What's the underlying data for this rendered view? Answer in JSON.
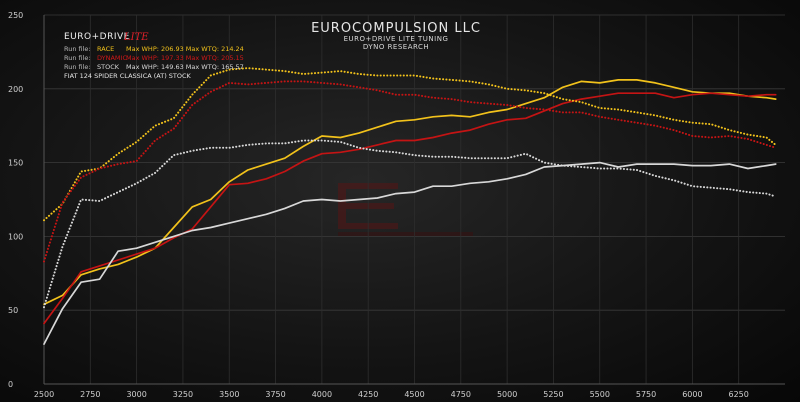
{
  "header": {
    "title": "EUROCOMPULSION LLC",
    "subtitle1": "EURO+DRIVE LITE TUNING",
    "subtitle2": "DYNO RESEARCH"
  },
  "logo": {
    "text": "EURO+DRIVE",
    "accent": "LITE"
  },
  "legend": {
    "rows": [
      {
        "prefix": "Run file:",
        "name": "RACE",
        "stats": "Max WHP: 206.93 Max WTQ: 214.24",
        "color": "#f2c21b"
      },
      {
        "prefix": "Run file:",
        "name": "DYNAMIC",
        "stats": "Max WHP: 197.33 Max WTQ: 205.15",
        "color": "#d01818"
      },
      {
        "prefix": "Run file:",
        "name": "STOCK",
        "stats": "Max WHP: 149.63 Max WTQ: 165.57",
        "color": "#d8d8d8"
      }
    ],
    "vehicle": "FIAT 124 SPIDER CLASSICA (AT) STOCK"
  },
  "chart_data": {
    "type": "line",
    "xlim": [
      2500,
      6500
    ],
    "ylim": [
      0,
      250
    ],
    "x_ticks": [
      2500,
      2750,
      3000,
      3250,
      3500,
      3750,
      4000,
      4250,
      4500,
      4750,
      5000,
      5250,
      5500,
      5750,
      6000,
      6250
    ],
    "x_tick_labels": [
      "2500",
      "2750",
      "3000",
      "3250",
      "3500",
      "3750",
      "4000",
      "4250",
      "4500",
      "4750",
      "5000",
      "5250",
      "5500",
      "5750",
      "6000",
      "6250"
    ],
    "y_ticks": [
      0,
      50,
      100,
      150,
      200,
      250
    ],
    "grid": true,
    "colors": {
      "race": "#f2c21b",
      "dynamic": "#c41414",
      "stock": "#d8d8d8"
    },
    "series": [
      {
        "name": "RACE",
        "kind": "WHP",
        "style": "solid",
        "color": "#f2c21b",
        "x": [
          2500,
          2600,
          2700,
          2800,
          2900,
          3000,
          3100,
          3200,
          3300,
          3400,
          3500,
          3600,
          3700,
          3800,
          3900,
          4000,
          4100,
          4200,
          4300,
          4400,
          4500,
          4600,
          4700,
          4800,
          4900,
          5000,
          5100,
          5200,
          5300,
          5400,
          5500,
          5600,
          5700,
          5800,
          5900,
          6000,
          6100,
          6200,
          6300,
          6400,
          6450
        ],
        "y": [
          54,
          60,
          74,
          78,
          81,
          86,
          92,
          106,
          120,
          125,
          137,
          145,
          149,
          153,
          161,
          168,
          167,
          170,
          174,
          178,
          179,
          181,
          182,
          181,
          184,
          186,
          190,
          194,
          201,
          205,
          204,
          206,
          206,
          204,
          201,
          198,
          197,
          197,
          195,
          194,
          193
        ]
      },
      {
        "name": "DYNAMIC",
        "kind": "WHP",
        "style": "solid",
        "color": "#c41414",
        "x": [
          2500,
          2600,
          2700,
          2800,
          2900,
          3000,
          3100,
          3200,
          3300,
          3400,
          3500,
          3600,
          3700,
          3800,
          3900,
          4000,
          4100,
          4200,
          4300,
          4400,
          4500,
          4600,
          4700,
          4800,
          4900,
          5000,
          5100,
          5200,
          5300,
          5400,
          5500,
          5600,
          5700,
          5800,
          5900,
          6000,
          6100,
          6200,
          6300,
          6400,
          6450
        ],
        "y": [
          41,
          58,
          76,
          80,
          84,
          88,
          92,
          99,
          105,
          120,
          135,
          136,
          139,
          144,
          151,
          156,
          157,
          159,
          162,
          165,
          165,
          167,
          170,
          172,
          176,
          179,
          180,
          185,
          190,
          193,
          195,
          197,
          197,
          197,
          194,
          196,
          197,
          196,
          195,
          196,
          196
        ]
      },
      {
        "name": "STOCK",
        "kind": "WHP",
        "style": "solid",
        "color": "#d8d8d8",
        "x": [
          2500,
          2600,
          2700,
          2800,
          2900,
          3000,
          3100,
          3200,
          3300,
          3400,
          3500,
          3600,
          3700,
          3800,
          3900,
          4000,
          4100,
          4200,
          4300,
          4400,
          4500,
          4600,
          4700,
          4800,
          4900,
          5000,
          5100,
          5200,
          5300,
          5400,
          5500,
          5600,
          5700,
          5800,
          5900,
          6000,
          6100,
          6200,
          6300,
          6400,
          6450
        ],
        "y": [
          27,
          51,
          69,
          71,
          90,
          92,
          96,
          100,
          104,
          106,
          109,
          112,
          115,
          119,
          124,
          125,
          124,
          125,
          126,
          129,
          130,
          134,
          134,
          136,
          137,
          139,
          142,
          147,
          148,
          149,
          150,
          147,
          149,
          149,
          149,
          148,
          148,
          149,
          146,
          148,
          149
        ]
      },
      {
        "name": "RACE",
        "kind": "WTQ",
        "style": "dotted",
        "color": "#f2c21b",
        "x": [
          2500,
          2600,
          2700,
          2800,
          2900,
          3000,
          3100,
          3200,
          3300,
          3400,
          3500,
          3600,
          3700,
          3800,
          3900,
          4000,
          4100,
          4200,
          4300,
          4400,
          4500,
          4600,
          4700,
          4800,
          4900,
          5000,
          5100,
          5200,
          5300,
          5400,
          5500,
          5600,
          5700,
          5800,
          5900,
          6000,
          6100,
          6200,
          6300,
          6400,
          6450
        ],
        "y": [
          111,
          122,
          144,
          146,
          156,
          164,
          175,
          180,
          196,
          209,
          213,
          214,
          213,
          212,
          210,
          211,
          212,
          210,
          209,
          209,
          209,
          207,
          206,
          205,
          203,
          200,
          199,
          197,
          193,
          191,
          187,
          186,
          184,
          182,
          179,
          177,
          176,
          172,
          169,
          167,
          162
        ]
      },
      {
        "name": "DYNAMIC",
        "kind": "WTQ",
        "style": "dotted",
        "color": "#c41414",
        "x": [
          2500,
          2600,
          2700,
          2800,
          2900,
          3000,
          3100,
          3200,
          3300,
          3400,
          3500,
          3600,
          3700,
          3800,
          3900,
          4000,
          4100,
          4200,
          4300,
          4400,
          4500,
          4600,
          4700,
          4800,
          4900,
          5000,
          5100,
          5200,
          5300,
          5400,
          5500,
          5600,
          5700,
          5800,
          5900,
          6000,
          6100,
          6200,
          6300,
          6400,
          6450
        ],
        "y": [
          83,
          123,
          140,
          146,
          149,
          151,
          165,
          173,
          189,
          198,
          204,
          203,
          204,
          205,
          205,
          204,
          203,
          201,
          199,
          196,
          196,
          194,
          193,
          191,
          190,
          189,
          187,
          186,
          184,
          184,
          181,
          179,
          177,
          175,
          172,
          168,
          167,
          168,
          166,
          162,
          160
        ]
      },
      {
        "name": "STOCK",
        "kind": "WTQ",
        "style": "dotted",
        "color": "#d8d8d8",
        "x": [
          2500,
          2600,
          2700,
          2800,
          2900,
          3000,
          3100,
          3200,
          3300,
          3400,
          3500,
          3600,
          3700,
          3800,
          3900,
          4000,
          4100,
          4200,
          4300,
          4400,
          4500,
          4600,
          4700,
          4800,
          4900,
          5000,
          5100,
          5200,
          5300,
          5400,
          5500,
          5600,
          5700,
          5800,
          5900,
          6000,
          6100,
          6200,
          6300,
          6400,
          6450
        ],
        "y": [
          52,
          93,
          125,
          124,
          130,
          136,
          143,
          155,
          158,
          160,
          160,
          162,
          163,
          163,
          165,
          165,
          164,
          160,
          158,
          157,
          155,
          154,
          154,
          153,
          153,
          153,
          156,
          150,
          148,
          147,
          146,
          146,
          145,
          141,
          138,
          134,
          133,
          132,
          130,
          129,
          127
        ]
      }
    ]
  }
}
